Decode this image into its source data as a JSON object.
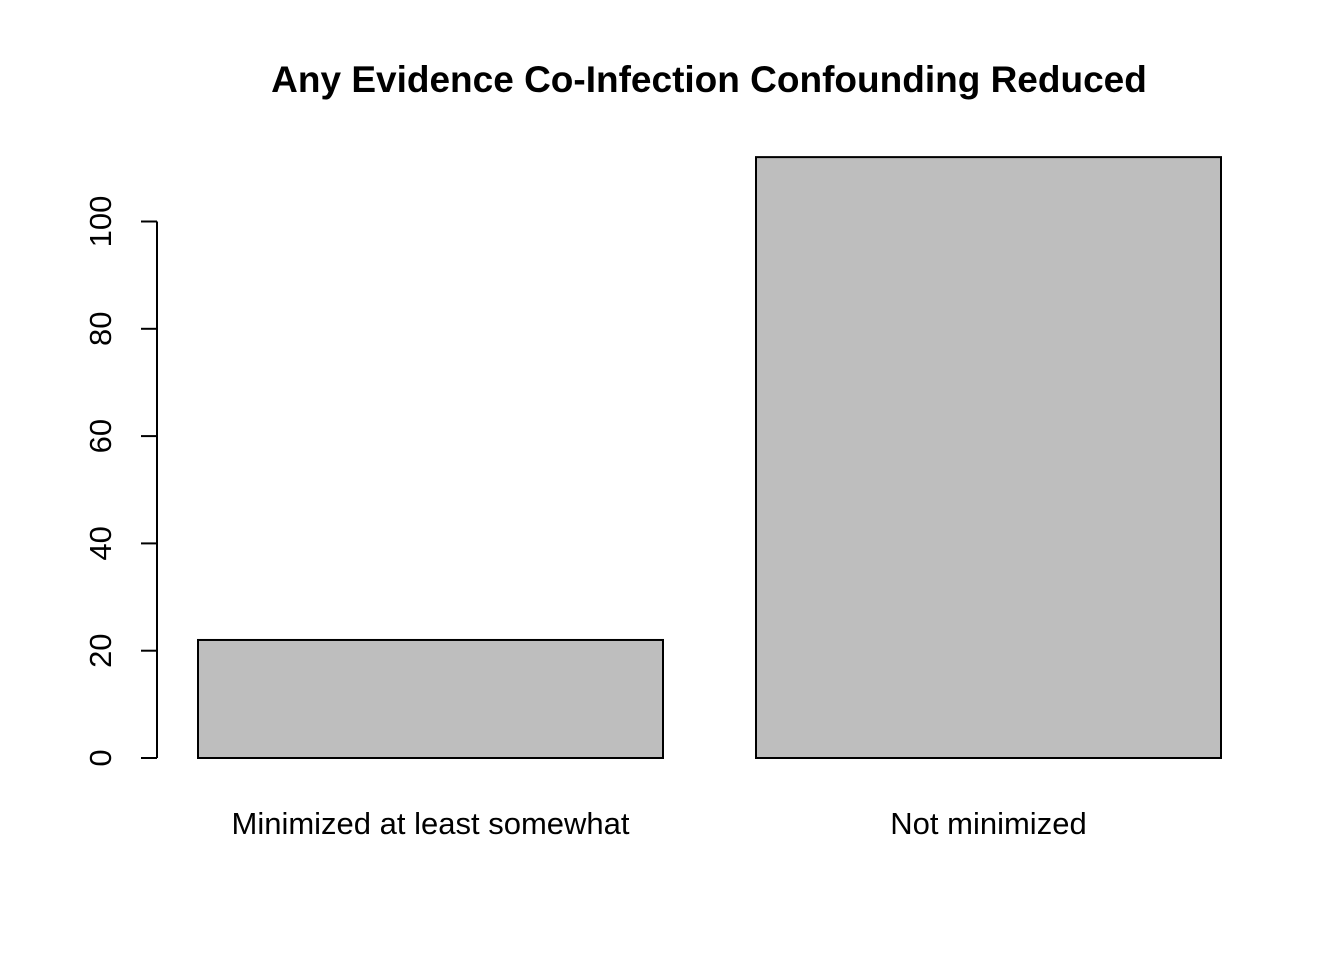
{
  "chart_data": {
    "type": "bar",
    "title": "Any Evidence Co-Infection Confounding Reduced",
    "xlabel": "",
    "ylabel": "",
    "categories": [
      "Minimized at least somewhat",
      "Not minimized"
    ],
    "values": [
      22,
      112
    ],
    "ylim": [
      0,
      112
    ],
    "yticks": [
      0,
      20,
      40,
      60,
      80,
      100
    ],
    "bar_color": "#bebebe",
    "bar_edge_color": "#000000",
    "grid": false,
    "legend": "none"
  }
}
